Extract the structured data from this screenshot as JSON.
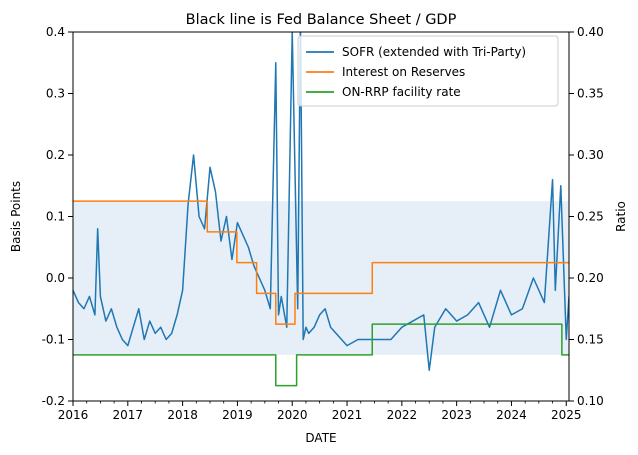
{
  "chart_data": {
    "type": "line",
    "title": "Black line is Fed Balance Sheet / GDP",
    "xlabel": "DATE",
    "ylabel": "Basis Points",
    "y2label": "Ratio",
    "xlim": [
      2016.0,
      2025.05
    ],
    "ylim": [
      -0.2,
      0.4
    ],
    "y2lim": [
      0.1,
      0.4
    ],
    "x_ticks": [
      2016,
      2017,
      2018,
      2019,
      2020,
      2021,
      2022,
      2023,
      2024,
      2025
    ],
    "y_ticks": [
      -0.2,
      -0.1,
      0.0,
      0.1,
      0.2,
      0.3,
      0.4
    ],
    "y2_ticks": [
      0.1,
      0.15,
      0.2,
      0.25,
      0.3,
      0.35,
      0.4
    ],
    "legend_position": "upper-right",
    "band": {
      "y_low": -0.125,
      "y_high": 0.125,
      "color": "#e6eff8"
    },
    "series": [
      {
        "name": "SOFR (extended with Tri-Party)",
        "color": "#1f77b4",
        "x": [
          2016.0,
          2016.1,
          2016.2,
          2016.3,
          2016.4,
          2016.45,
          2016.5,
          2016.6,
          2016.7,
          2016.8,
          2016.9,
          2017.0,
          2017.1,
          2017.2,
          2017.3,
          2017.4,
          2017.5,
          2017.6,
          2017.7,
          2017.8,
          2017.9,
          2018.0,
          2018.1,
          2018.2,
          2018.3,
          2018.4,
          2018.5,
          2018.6,
          2018.7,
          2018.8,
          2018.9,
          2019.0,
          2019.1,
          2019.2,
          2019.3,
          2019.4,
          2019.5,
          2019.6,
          2019.7,
          2019.75,
          2019.8,
          2019.9,
          2020.0,
          2020.1,
          2020.15,
          2020.2,
          2020.25,
          2020.3,
          2020.4,
          2020.5,
          2020.6,
          2020.7,
          2020.8,
          2020.9,
          2021.0,
          2021.2,
          2021.4,
          2021.6,
          2021.8,
          2022.0,
          2022.2,
          2022.4,
          2022.5,
          2022.6,
          2022.8,
          2023.0,
          2023.2,
          2023.4,
          2023.6,
          2023.8,
          2024.0,
          2024.2,
          2024.4,
          2024.6,
          2024.75,
          2024.8,
          2024.9,
          2025.0,
          2025.05
        ],
        "values": [
          -0.02,
          -0.04,
          -0.05,
          -0.03,
          -0.06,
          0.08,
          -0.03,
          -0.07,
          -0.05,
          -0.08,
          -0.1,
          -0.11,
          -0.08,
          -0.05,
          -0.1,
          -0.07,
          -0.09,
          -0.08,
          -0.1,
          -0.09,
          -0.06,
          -0.02,
          0.12,
          0.2,
          0.1,
          0.08,
          0.18,
          0.14,
          0.06,
          0.1,
          0.03,
          0.09,
          0.07,
          0.05,
          0.02,
          0.0,
          -0.02,
          -0.05,
          0.35,
          -0.06,
          -0.03,
          -0.08,
          0.4,
          -0.05,
          0.42,
          -0.1,
          -0.08,
          -0.09,
          -0.08,
          -0.06,
          -0.05,
          -0.08,
          -0.09,
          -0.1,
          -0.11,
          -0.1,
          -0.1,
          -0.1,
          -0.1,
          -0.08,
          -0.07,
          -0.06,
          -0.15,
          -0.08,
          -0.05,
          -0.07,
          -0.06,
          -0.04,
          -0.08,
          -0.02,
          -0.06,
          -0.05,
          0.0,
          -0.04,
          0.16,
          -0.02,
          0.15,
          -0.1,
          -0.03
        ]
      },
      {
        "name": "Interest on Reserves",
        "color": "#ff7f0e",
        "x": [
          2016.0,
          2018.45,
          2018.45,
          2018.99,
          2018.99,
          2019.35,
          2019.35,
          2019.7,
          2019.7,
          2020.05,
          2020.05,
          2021.46,
          2021.46,
          2025.05
        ],
        "values": [
          0.125,
          0.125,
          0.075,
          0.075,
          0.025,
          0.025,
          -0.025,
          -0.025,
          -0.075,
          -0.075,
          -0.025,
          -0.025,
          0.025,
          0.025
        ]
      },
      {
        "name": "ON-RRP facility rate",
        "color": "#2ca02c",
        "x": [
          2016.0,
          2019.7,
          2019.7,
          2020.08,
          2020.08,
          2021.46,
          2021.46,
          2024.92,
          2024.92,
          2025.05
        ],
        "values": [
          -0.125,
          -0.125,
          -0.175,
          -0.175,
          -0.125,
          -0.125,
          -0.075,
          -0.075,
          -0.125,
          -0.125
        ]
      }
    ]
  }
}
